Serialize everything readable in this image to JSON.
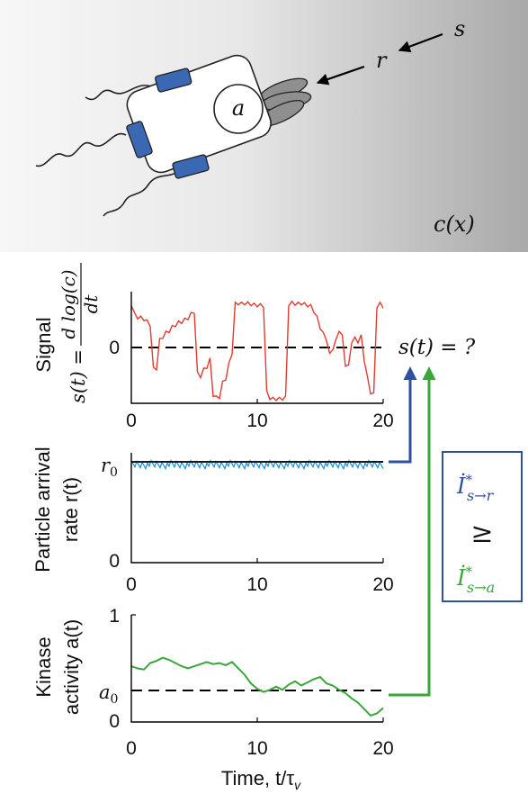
{
  "top": {
    "cell_label": "a",
    "s_label": "s",
    "r_label": "r",
    "c_label": "c(x)"
  },
  "panel_signal": {
    "ylabel_line1": "Signal",
    "ylabel_line2_prefix": "s(t) =",
    "frac_num": "d log(c)",
    "frac_den": "dt",
    "tick_y0": "0",
    "tick_x": [
      "0",
      "10",
      "20"
    ],
    "question": "s(t) = ?"
  },
  "panel_rate": {
    "ylabel_line1": "Particle arrival",
    "ylabel_line2": "rate r(t)",
    "tick_r0": "r",
    "tick_r0_sub": "0",
    "tick_y0": "0",
    "tick_x": [
      "0",
      "10",
      "20"
    ]
  },
  "panel_kinase": {
    "ylabel_line1": "Kinase",
    "ylabel_line2": "activity a(t)",
    "tick_y1": "1",
    "tick_a0": "a",
    "tick_a0_sub": "0",
    "tick_y0": "0",
    "tick_x": [
      "0",
      "10",
      "20"
    ],
    "xlabel": "Time, t/τ",
    "xlabel_sub": "v"
  },
  "info_box": {
    "top_I": "İ",
    "top_sup": "*",
    "top_sub": "s→r",
    "ge": "≥",
    "bottom_I": "İ",
    "bottom_sup": "*",
    "bottom_sub": "s→a"
  },
  "colors": {
    "signal": "#e23b2e",
    "rate": "#1f8fd6",
    "rate_mean": "#101820",
    "kinase": "#3aa63a",
    "arrow_blue": "#2f4f9f",
    "arrow_green": "#3aa63a",
    "motor": "#3a68b3"
  },
  "chart_data": [
    {
      "type": "line",
      "name_panel": "signal",
      "x": [
        0,
        0.25,
        0.5,
        0.75,
        1,
        1.25,
        1.5,
        1.75,
        2,
        2.25,
        2.5,
        2.75,
        3,
        3.25,
        3.5,
        3.75,
        4,
        4.25,
        4.5,
        4.75,
        5,
        5.25,
        5.5,
        5.75,
        6,
        6.25,
        6.5,
        6.75,
        7,
        7.25,
        7.5,
        7.75,
        8,
        8.25,
        8.5,
        8.75,
        9,
        9.25,
        9.5,
        9.75,
        10,
        10.25,
        10.5,
        10.75,
        11,
        11.25,
        11.5,
        11.75,
        12,
        12.25,
        12.5,
        12.75,
        13,
        13.25,
        13.5,
        13.75,
        14,
        14.25,
        14.5,
        14.75,
        15,
        15.25,
        15.5,
        15.75,
        16,
        16.25,
        16.5,
        16.75,
        17,
        17.25,
        17.5,
        17.75,
        18,
        18.25,
        18.5,
        18.75,
        19,
        19.25,
        19.5,
        19.75,
        20
      ],
      "values": [
        1.0,
        0.78,
        0.72,
        0.7,
        0.68,
        0.62,
        0.55,
        -0.4,
        -0.38,
        0.22,
        0.3,
        0.38,
        0.42,
        0.5,
        0.55,
        0.6,
        0.62,
        0.66,
        0.7,
        0.78,
        0.84,
        -0.5,
        -0.55,
        -0.42,
        -0.35,
        -0.2,
        -0.95,
        -1.02,
        -1.0,
        -0.7,
        -0.6,
        -0.3,
        -0.05,
        1.0,
        1.02,
        1.0,
        1.02,
        1.01,
        1.0,
        0.98,
        0.98,
        0.97,
        0.96,
        -0.9,
        -1.02,
        -1.05,
        -1.04,
        -1.05,
        -1.03,
        -1.02,
        1.0,
        1.02,
        1.01,
        1.0,
        1.02,
        0.99,
        0.98,
        0.95,
        0.85,
        0.7,
        0.5,
        0.35,
        0.25,
        -0.1,
        0.05,
        0.2,
        0.45,
        0.3,
        -0.3,
        -0.35,
        0.2,
        0.25,
        0.2,
        0.3,
        -0.2,
        -0.6,
        -0.9,
        -0.95,
        0.95,
        1.0,
        0.95
      ],
      "ylim": [
        -1.1,
        1.15
      ],
      "xlim": [
        0,
        20
      ],
      "reference_line": 0
    },
    {
      "type": "line",
      "name_panel": "rate",
      "x": [
        0,
        5,
        10,
        15,
        20
      ],
      "values": [
        1.0,
        1.0,
        1.0,
        1.0,
        1.0
      ],
      "ylim": [
        0,
        1.12
      ],
      "xlim": [
        0,
        20
      ],
      "noise": "small"
    },
    {
      "type": "line",
      "name_panel": "kinase",
      "x": [
        0,
        0.5,
        1,
        1.5,
        2,
        2.5,
        3,
        3.5,
        4,
        4.5,
        5,
        5.5,
        6,
        6.5,
        7,
        7.5,
        8,
        8.5,
        9,
        9.5,
        10,
        10.5,
        11,
        11.5,
        12,
        12.5,
        13,
        13.5,
        14,
        14.5,
        15,
        15.5,
        16,
        16.5,
        17,
        17.5,
        18,
        18.5,
        19,
        19.5,
        20
      ],
      "values": [
        0.52,
        0.5,
        0.49,
        0.55,
        0.57,
        0.6,
        0.58,
        0.55,
        0.52,
        0.5,
        0.52,
        0.54,
        0.56,
        0.54,
        0.55,
        0.53,
        0.56,
        0.5,
        0.44,
        0.36,
        0.31,
        0.28,
        0.3,
        0.33,
        0.3,
        0.35,
        0.38,
        0.34,
        0.37,
        0.4,
        0.42,
        0.36,
        0.34,
        0.3,
        0.27,
        0.22,
        0.18,
        0.12,
        0.06,
        0.08,
        0.13
      ],
      "ylim": [
        0,
        1
      ],
      "xlim": [
        0,
        20
      ],
      "reference_line": 0.3
    }
  ]
}
